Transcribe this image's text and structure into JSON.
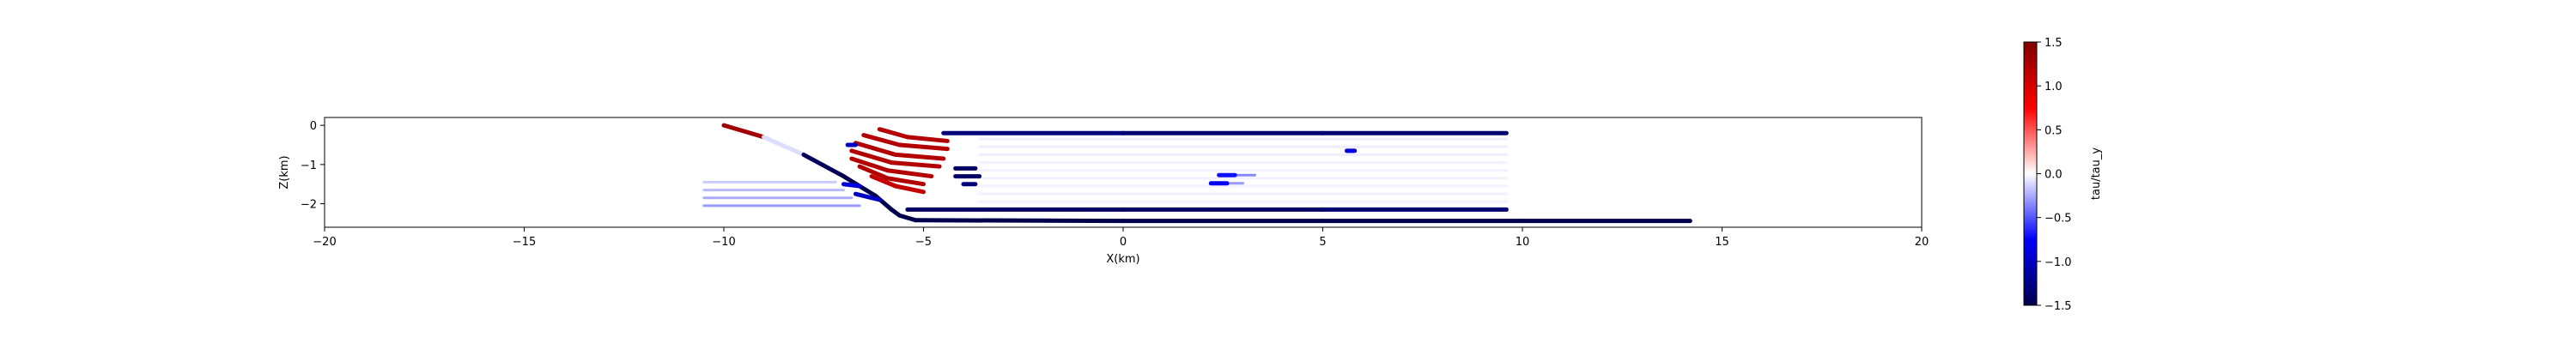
{
  "chart_data": {
    "type": "scatter",
    "title": "",
    "xlabel": "X(km)",
    "ylabel": "Z(km)",
    "xlim": [
      -20,
      20
    ],
    "ylim": [
      -2.6,
      0.2
    ],
    "xticks": [
      -20,
      -15,
      -10,
      -5,
      0,
      5,
      10,
      15,
      20
    ],
    "xtick_labels": [
      "−20",
      "−15",
      "−10",
      "−5",
      "0",
      "5",
      "10",
      "15",
      "20"
    ],
    "yticks": [
      0,
      -1,
      -2
    ],
    "ytick_labels": [
      "0",
      "−1",
      "−2"
    ],
    "grid": false,
    "colormap": "seismic",
    "color_low": "#00004c",
    "color_mid": "#ffffff",
    "color_high": "#800000",
    "colorbar": {
      "label": "tau/tau_y",
      "range": [
        -1.5,
        1.5
      ],
      "ticks": [
        1.5,
        1.0,
        0.5,
        0.0,
        -0.5,
        -1.0,
        -1.5
      ],
      "tick_labels": [
        "1.5",
        "1.0",
        "0.5",
        "0.0",
        "−0.5",
        "−1.0",
        "−1.5"
      ]
    },
    "faults": [
      {
        "points": [
          [
            -10,
            0
          ],
          [
            -9,
            -0.3
          ],
          [
            -8,
            -0.75
          ],
          [
            -7,
            -1.3
          ],
          [
            -6.2,
            -1.8
          ],
          [
            -5.8,
            -2.15
          ],
          [
            -5.6,
            -2.3
          ],
          [
            -5.2,
            -2.42
          ],
          [
            0,
            -2.44
          ],
          [
            5,
            -2.44
          ],
          [
            10,
            -2.44
          ],
          [
            14.2,
            -2.44
          ]
        ],
        "values": [
          1.4,
          1.2,
          -1.4,
          -1.5,
          -1.5,
          -1.5,
          -1.5,
          -1.5,
          -1.5,
          -1.5,
          -1.5,
          -1.5
        ]
      },
      {
        "points": [
          [
            -4.5,
            -0.2
          ],
          [
            0,
            -0.2
          ],
          [
            5,
            -0.2
          ],
          [
            9.6,
            -0.2
          ]
        ],
        "values": [
          -1.3,
          -1.3,
          -1.4,
          -1.3
        ]
      },
      {
        "points": [
          [
            -5.4,
            -2.15
          ],
          [
            0,
            -2.15
          ],
          [
            5,
            -2.15
          ],
          [
            9.6,
            -2.15
          ]
        ],
        "values": [
          -1.4,
          -1.4,
          -1.4,
          -1.3
        ]
      },
      {
        "points": [
          [
            -6.1,
            -0.1
          ],
          [
            -5.4,
            -0.3
          ],
          [
            -4.4,
            -0.4
          ]
        ],
        "values": [
          1.2,
          1.2,
          1.2
        ]
      },
      {
        "points": [
          [
            -6.5,
            -0.25
          ],
          [
            -5.6,
            -0.5
          ],
          [
            -4.4,
            -0.6
          ]
        ],
        "values": [
          1.2,
          1.2,
          1.2
        ]
      },
      {
        "points": [
          [
            -6.7,
            -0.45
          ],
          [
            -5.7,
            -0.75
          ],
          [
            -4.5,
            -0.85
          ]
        ],
        "values": [
          1.2,
          1.2,
          1.2
        ]
      },
      {
        "points": [
          [
            -6.8,
            -0.65
          ],
          [
            -5.8,
            -0.95
          ],
          [
            -4.6,
            -1.05
          ]
        ],
        "values": [
          1.2,
          1.2,
          1.2
        ]
      },
      {
        "points": [
          [
            -6.8,
            -0.85
          ],
          [
            -5.9,
            -1.15
          ],
          [
            -4.8,
            -1.3
          ]
        ],
        "values": [
          1.2,
          1.2,
          1.2
        ]
      },
      {
        "points": [
          [
            -6.6,
            -1.05
          ],
          [
            -5.9,
            -1.35
          ],
          [
            -5.0,
            -1.5
          ]
        ],
        "values": [
          1.2,
          1.2,
          1.2
        ]
      },
      {
        "points": [
          [
            -6.3,
            -1.3
          ],
          [
            -5.7,
            -1.55
          ],
          [
            -5.0,
            -1.7
          ]
        ],
        "values": [
          1.1,
          1.1,
          1.1
        ]
      },
      {
        "points": [
          [
            -4.2,
            -1.1
          ],
          [
            -3.7,
            -1.1
          ]
        ],
        "values": [
          -1.4,
          -1.4
        ]
      },
      {
        "points": [
          [
            -4.2,
            -1.3
          ],
          [
            -3.6,
            -1.3
          ]
        ],
        "values": [
          -1.4,
          -1.4
        ]
      },
      {
        "points": [
          [
            -4.0,
            -1.5
          ],
          [
            -3.7,
            -1.5
          ]
        ],
        "values": [
          -1.3,
          -1.3
        ]
      },
      {
        "points": [
          [
            -6.9,
            -0.5
          ],
          [
            -6.7,
            -0.5
          ]
        ],
        "values": [
          -1.0,
          -1.0
        ]
      },
      {
        "points": [
          [
            -7.0,
            -1.5
          ],
          [
            -6.6,
            -1.55
          ]
        ],
        "values": [
          -0.9,
          -0.9
        ]
      },
      {
        "points": [
          [
            -6.7,
            -1.75
          ],
          [
            -6.1,
            -1.9
          ]
        ],
        "values": [
          -1.0,
          -1.0
        ]
      },
      {
        "points": [
          [
            5.6,
            -0.65
          ],
          [
            5.8,
            -0.65
          ]
        ],
        "values": [
          -0.9,
          -0.9
        ]
      },
      {
        "points": [
          [
            2.4,
            -1.27
          ],
          [
            2.8,
            -1.27
          ]
        ],
        "values": [
          -0.7,
          -0.7
        ]
      },
      {
        "points": [
          [
            2.2,
            -1.48
          ],
          [
            2.6,
            -1.48
          ]
        ],
        "values": [
          -0.8,
          -0.8
        ]
      }
    ],
    "faint_strands": [
      {
        "points": [
          [
            -10.5,
            -1.45
          ],
          [
            -7.2,
            -1.45
          ]
        ],
        "values": [
          -0.15,
          -0.15
        ]
      },
      {
        "points": [
          [
            -10.5,
            -1.65
          ],
          [
            -7.0,
            -1.65
          ]
        ],
        "values": [
          -0.2,
          -0.2
        ]
      },
      {
        "points": [
          [
            -10.5,
            -1.85
          ],
          [
            -6.8,
            -1.85
          ]
        ],
        "values": [
          -0.25,
          -0.25
        ]
      },
      {
        "points": [
          [
            -10.5,
            -2.05
          ],
          [
            -6.6,
            -2.05
          ]
        ],
        "values": [
          -0.3,
          -0.3
        ]
      },
      {
        "points": [
          [
            2.8,
            -1.27
          ],
          [
            3.3,
            -1.27
          ]
        ],
        "values": [
          -0.35,
          -0.35
        ]
      },
      {
        "points": [
          [
            2.6,
            -1.48
          ],
          [
            3.0,
            -1.48
          ]
        ],
        "values": [
          -0.3,
          -0.3
        ]
      },
      {
        "points": [
          [
            -3.6,
            -0.35
          ],
          [
            9.6,
            -0.35
          ]
        ],
        "values": [
          -0.05,
          -0.05
        ]
      },
      {
        "points": [
          [
            -3.6,
            -0.55
          ],
          [
            9.6,
            -0.55
          ]
        ],
        "values": [
          -0.05,
          -0.05
        ]
      },
      {
        "points": [
          [
            -3.6,
            -0.75
          ],
          [
            9.6,
            -0.75
          ]
        ],
        "values": [
          -0.05,
          -0.05
        ]
      },
      {
        "points": [
          [
            -3.6,
            -0.95
          ],
          [
            9.6,
            -0.95
          ]
        ],
        "values": [
          -0.04,
          -0.04
        ]
      },
      {
        "points": [
          [
            -3.6,
            -1.15
          ],
          [
            9.6,
            -1.15
          ]
        ],
        "values": [
          -0.04,
          -0.04
        ]
      },
      {
        "points": [
          [
            -3.6,
            -1.35
          ],
          [
            9.6,
            -1.35
          ]
        ],
        "values": [
          -0.04,
          -0.04
        ]
      },
      {
        "points": [
          [
            -3.6,
            -1.55
          ],
          [
            9.6,
            -1.55
          ]
        ],
        "values": [
          -0.04,
          -0.04
        ]
      },
      {
        "points": [
          [
            -3.6,
            -1.75
          ],
          [
            9.6,
            -1.75
          ]
        ],
        "values": [
          -0.04,
          -0.04
        ]
      },
      {
        "points": [
          [
            -3.6,
            -1.95
          ],
          [
            9.6,
            -1.95
          ]
        ],
        "values": [
          -0.04,
          -0.04
        ]
      }
    ]
  }
}
